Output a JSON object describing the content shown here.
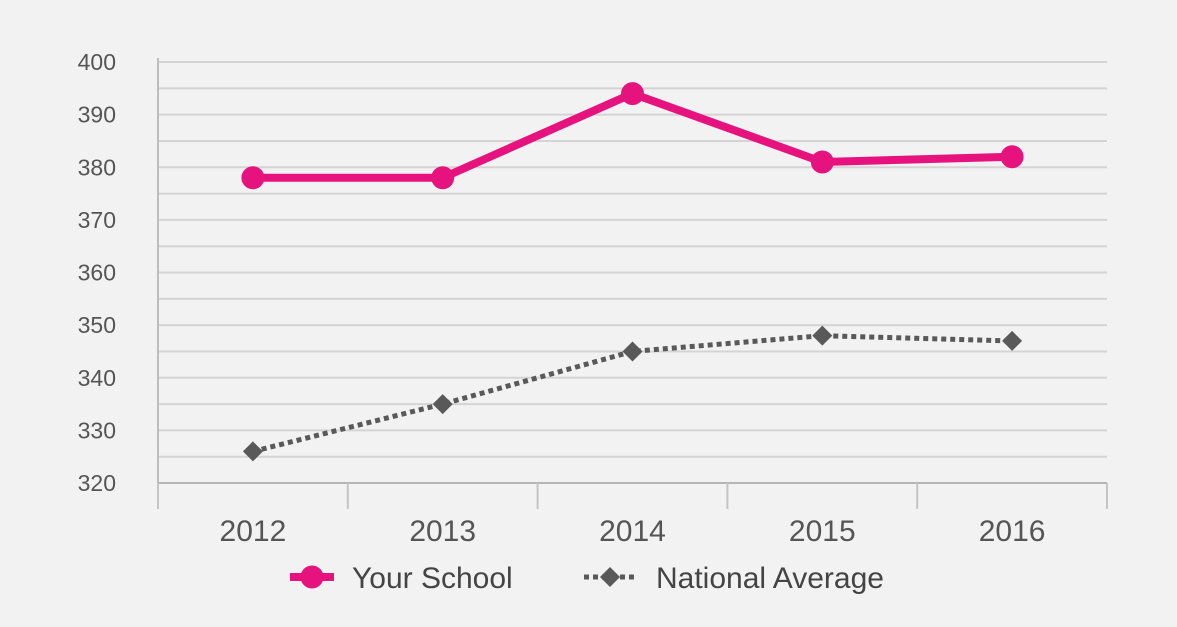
{
  "chart_data": {
    "type": "line",
    "title": "",
    "xlabel": "",
    "ylabel": "",
    "categories": [
      "2012",
      "2013",
      "2014",
      "2015",
      "2016"
    ],
    "ylim": [
      320,
      400
    ],
    "yticks": [
      "320",
      "330",
      "340",
      "350",
      "360",
      "370",
      "380",
      "390",
      "400"
    ],
    "grid": true,
    "legend_position": "bottom",
    "series": [
      {
        "name": "Your School",
        "values": [
          378,
          378,
          394,
          381,
          382
        ],
        "color": "#e6137f",
        "marker": "circle",
        "line_style": "solid"
      },
      {
        "name": "National Average",
        "values": [
          326,
          335,
          345,
          348,
          347
        ],
        "color": "#595959",
        "marker": "diamond",
        "line_style": "dotted"
      }
    ]
  }
}
